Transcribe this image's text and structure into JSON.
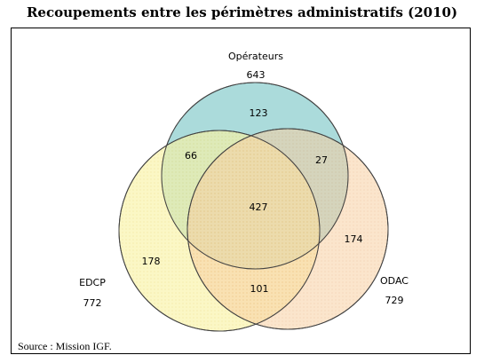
{
  "title": "Recoupements entre les périmètres administratifs (2010)",
  "source": "Source : Mission IGF.",
  "sets": {
    "operateurs": {
      "name": "Opérateurs",
      "total": "643",
      "color": "#7fc9c9"
    },
    "edcp": {
      "name": "EDCP",
      "total": "772",
      "color": "#f7ef9a"
    },
    "odac": {
      "name": "ODAC",
      "total": "729",
      "color": "#f6c79a"
    }
  },
  "regions": {
    "operateurs_only": "123",
    "operateurs_edcp": "66",
    "operateurs_odac": "27",
    "all_three": "427",
    "odac_only": "174",
    "edcp_only": "178",
    "edcp_odac": "101"
  }
}
